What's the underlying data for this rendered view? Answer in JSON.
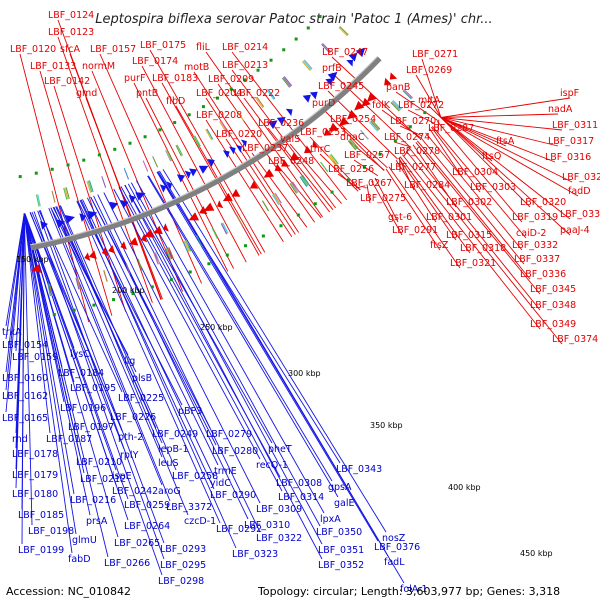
{
  "title": "Leptospira biflexa serovar Patoc strain 'Patoc 1 (Ames)' chr...",
  "footer": {
    "accession": "Accession: NC_010842",
    "topology": "Topology: circular; Length: 3,603,977 bp; Genes: 3,318"
  },
  "colors": {
    "forward": "#e60000",
    "reverse": "#1414e6",
    "backbone": "#808080",
    "gc_dot": "#119911"
  },
  "scale_ticks": [
    "150 kbp",
    "200 kbp",
    "250 kbp",
    "300 kbp",
    "350 kbp",
    "400 kbp",
    "450 kbp"
  ],
  "forward_labels": [
    "LBF_0124",
    "LBF_0123",
    "LBF_0120",
    "sfcA",
    "LBF_0133",
    "normM",
    "LBF_0142",
    "LBF_0157",
    "gmd",
    "LBF_0175",
    "LBF_0174",
    "purF",
    "LBF_0183",
    "pntB",
    "flbD",
    "fliL",
    "motB",
    "LBF_0214",
    "LBF_0213",
    "LBF_0209",
    "LBF_0204",
    "LBF_0208",
    "LBF_0222",
    "LBF_0220",
    "LBF_0247",
    "prfB",
    "LBF_0245",
    "purD",
    "LBF_0236",
    "valS",
    "LBF_0237",
    "LBF_0253",
    "thrC",
    "LBF_0248",
    "LBF_0254",
    "dnaC",
    "LBF_0257",
    "LBF_0256",
    "folK",
    "panB",
    "LBF_0272",
    "LBF_0270",
    "LBF_0274",
    "LBF_0278",
    "LBF_0277",
    "LBF_0267",
    "LBF_0275",
    "LBF_0284",
    "LBF_0271",
    "LBF_0269",
    "mltA",
    "LBF_0287",
    "gst-6",
    "LBF_0291",
    "ftsZ",
    "ftsQ",
    "ftsA",
    "LBF_0304",
    "LBF_0303",
    "LBF_0302",
    "LBF_0301",
    "LBF_0315",
    "LBF_0318",
    "LBF_0321",
    "ispF",
    "nadA",
    "LBF_0311",
    "LBF_0317",
    "LBF_0316",
    "LBF_0320",
    "LBF_0319",
    "caiD-2",
    "LBF_0332",
    "LBF_0337",
    "LBF_0336",
    "LBF_0345",
    "LBF_0348",
    "LBF_0349",
    "LBF_0374",
    "LBF_0328",
    "fadD",
    "LBF_0333",
    "paaJ-4"
  ],
  "reverse_labels": [
    "trkA",
    "LBF_0154",
    "LBF_0159",
    "LBF_0160",
    "LBF_0162",
    "LBF_0165",
    "rnd",
    "LBF_0178",
    "LBF_0179",
    "LBF_0180",
    "LBF_0185",
    "LBF_0198",
    "LBF_0199",
    "lysC",
    "LBF_0184",
    "LBF_0195",
    "LBF_0196",
    "LBF_0197",
    "LBF_0187",
    "LBF_0210",
    "LBF_0212",
    "LBF_0216",
    "prsA",
    "glmU",
    "fabD",
    "lig",
    "plsB",
    "LBF_0225",
    "LBF_0226",
    "pth-2",
    "rplY",
    "ispE",
    "LBF_0242",
    "LBF_0259",
    "LBF_0264",
    "LBF_0265",
    "LBF_0266",
    "pBP3",
    "LBF_0249",
    "lepB-1",
    "leuS",
    "LBF_0258",
    "aroG",
    "LBF_3372",
    "czcD-1",
    "LBF_0293",
    "LBF_0295",
    "LBF_0298",
    "LBF_0279",
    "LBF_0280",
    "trmE",
    "yidC",
    "LBF_0290",
    "LBF_0292",
    "pheT",
    "recQ-1",
    "LBF_0308",
    "LBF_0314",
    "LBF_0309",
    "LBF_0310",
    "LBF_0322",
    "LBF_0323",
    "LBF_0343",
    "gpsA",
    "galE",
    "lpxA",
    "LBF_0350",
    "LBF_0351",
    "LBF_0352",
    "nosZ",
    "LBF_0376",
    "fadL",
    "folA-1"
  ]
}
